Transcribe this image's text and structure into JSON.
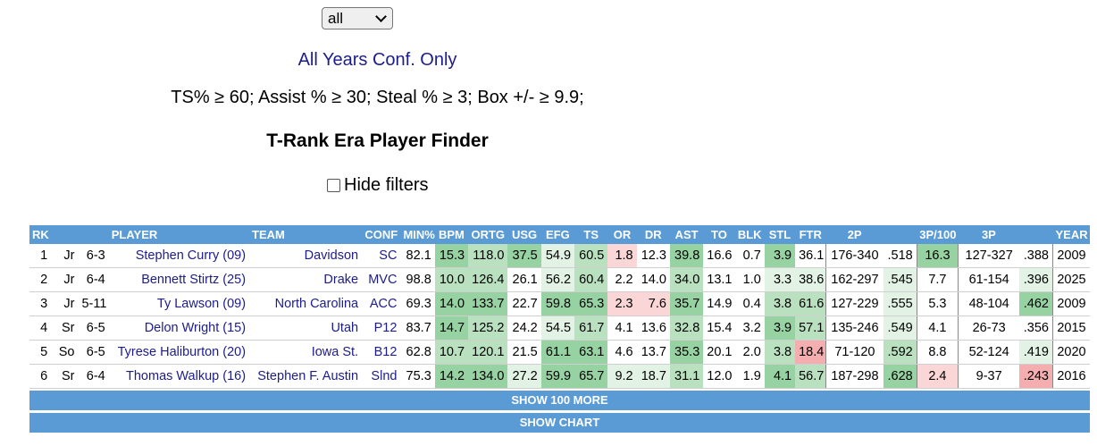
{
  "year_select": {
    "value": "all"
  },
  "subtitle": "All Years Conf. Only",
  "filters": "TS% ≥ 60; Assist % ≥ 30; Steal % ≥ 3; Box +/- ≥ 9.9;",
  "title": "T-Rank Era Player Finder",
  "hide_filters_label": "Hide filters",
  "table": {
    "columns": [
      "RK",
      "",
      "",
      "PLAYER",
      "TEAM",
      "CONF",
      "MIN%",
      "BPM",
      "ORTG",
      "USG",
      "EFG",
      "TS",
      "OR",
      "DR",
      "AST",
      "TO",
      "BLK",
      "STL",
      "FTR",
      "2P",
      "",
      "3P/100",
      "3P",
      "",
      "YEAR"
    ],
    "rows": [
      {
        "rk": "1",
        "class": "Jr",
        "ht": "6-3",
        "player": "Stephen Curry (09)",
        "team": "Davidson",
        "conf": "SC",
        "min": "82.1",
        "bpm": "15.3",
        "ortg": "118.0",
        "usg": "37.5",
        "efg": "54.9",
        "ts": "60.5",
        "or": "1.8",
        "dr": "12.3",
        "ast": "39.8",
        "to": "16.6",
        "blk": "0.7",
        "stl": "3.9",
        "ftr": "36.1",
        "p2": "176-340",
        "p2pct": ".518",
        "p3_100": "16.3",
        "p3": "127-327",
        "p3pct": ".388",
        "year": "2009"
      },
      {
        "rk": "2",
        "class": "Jr",
        "ht": "6-4",
        "player": "Bennett Stirtz (25)",
        "team": "Drake",
        "conf": "MVC",
        "min": "98.8",
        "bpm": "10.0",
        "ortg": "126.4",
        "usg": "26.1",
        "efg": "56.2",
        "ts": "60.4",
        "or": "2.2",
        "dr": "14.0",
        "ast": "34.0",
        "to": "13.1",
        "blk": "1.0",
        "stl": "3.3",
        "ftr": "38.6",
        "p2": "162-297",
        "p2pct": ".545",
        "p3_100": "7.7",
        "p3": "61-154",
        "p3pct": ".396",
        "year": "2025"
      },
      {
        "rk": "3",
        "class": "Jr",
        "ht": "5-11",
        "player": "Ty Lawson (09)",
        "team": "North Carolina",
        "conf": "ACC",
        "min": "69.3",
        "bpm": "14.0",
        "ortg": "133.7",
        "usg": "22.7",
        "efg": "59.8",
        "ts": "65.3",
        "or": "2.3",
        "dr": "7.6",
        "ast": "35.7",
        "to": "14.9",
        "blk": "0.4",
        "stl": "3.8",
        "ftr": "61.6",
        "p2": "127-229",
        "p2pct": ".555",
        "p3_100": "5.3",
        "p3": "48-104",
        "p3pct": ".462",
        "year": "2009"
      },
      {
        "rk": "4",
        "class": "Sr",
        "ht": "6-5",
        "player": "Delon Wright (15)",
        "team": "Utah",
        "conf": "P12",
        "min": "83.7",
        "bpm": "14.7",
        "ortg": "125.2",
        "usg": "24.2",
        "efg": "54.5",
        "ts": "61.7",
        "or": "4.1",
        "dr": "13.6",
        "ast": "32.8",
        "to": "15.4",
        "blk": "3.2",
        "stl": "3.9",
        "ftr": "57.1",
        "p2": "135-246",
        "p2pct": ".549",
        "p3_100": "4.1",
        "p3": "26-73",
        "p3pct": ".356",
        "year": "2015"
      },
      {
        "rk": "5",
        "class": "So",
        "ht": "6-5",
        "player": "Tyrese Haliburton (20)",
        "team": "Iowa St.",
        "conf": "B12",
        "min": "62.8",
        "bpm": "10.7",
        "ortg": "120.1",
        "usg": "21.5",
        "efg": "61.1",
        "ts": "63.1",
        "or": "4.6",
        "dr": "13.7",
        "ast": "35.3",
        "to": "20.1",
        "blk": "2.0",
        "stl": "3.8",
        "ftr": "18.4",
        "p2": "71-120",
        "p2pct": ".592",
        "p3_100": "8.8",
        "p3": "52-124",
        "p3pct": ".419",
        "year": "2020"
      },
      {
        "rk": "6",
        "class": "Sr",
        "ht": "6-4",
        "player": "Thomas Walkup (16)",
        "team": "Stephen F. Austin",
        "conf": "Slnd",
        "min": "75.3",
        "bpm": "14.2",
        "ortg": "134.0",
        "usg": "27.2",
        "efg": "59.9",
        "ts": "65.7",
        "or": "9.2",
        "dr": "18.7",
        "ast": "31.1",
        "to": "12.0",
        "blk": "1.9",
        "stl": "4.1",
        "ftr": "56.7",
        "p2": "187-298",
        "p2pct": ".628",
        "p3_100": "2.4",
        "p3": "9-37",
        "p3pct": ".243",
        "year": "2016"
      }
    ]
  },
  "show_more_label": "SHOW 100 MORE",
  "show_chart_label": "SHOW CHART"
}
